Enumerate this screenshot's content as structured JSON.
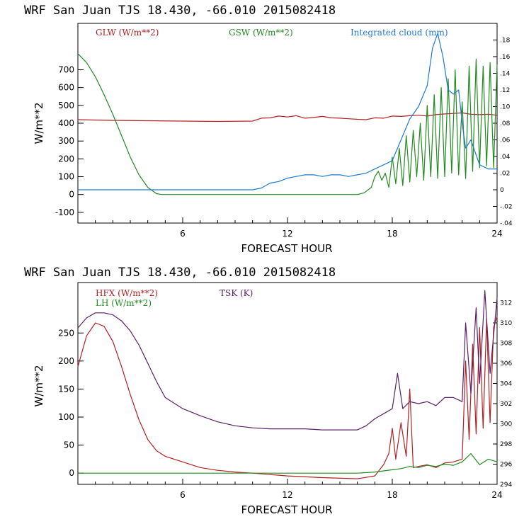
{
  "chart_data": [
    {
      "type": "line",
      "title": "WRF  San Juan TJS  18.430, -66.010  2015082418",
      "xlabel": "FORECAST HOUR",
      "ylabel": "W/m**2",
      "xlim": [
        0,
        24
      ],
      "xticks": [
        "6",
        "12",
        "18",
        "24"
      ],
      "ylim": [
        -160,
        960
      ],
      "yticks": [
        "-100",
        "0",
        "100",
        "200",
        "300",
        "400",
        "500",
        "600",
        "700"
      ],
      "y2lim": [
        -0.04,
        0.2
      ],
      "y2ticks": [
        "-.04",
        "-.02",
        "0",
        ".02",
        ".04",
        ".06",
        ".08",
        ".10",
        ".12",
        ".14",
        ".16",
        ".18"
      ],
      "legend_placement": "top",
      "series": [
        {
          "name": "GLW (W/m**2)",
          "color": "#b22222",
          "axis": "left",
          "x": [
            0,
            2,
            4,
            6,
            8,
            10,
            10.5,
            11,
            11.5,
            12,
            12.5,
            13,
            13.5,
            14,
            14.5,
            15,
            15.5,
            16,
            16.5,
            17,
            17.5,
            18,
            18.5,
            19,
            19.5,
            20,
            20.5,
            21,
            21.5,
            22,
            22.5,
            23,
            23.5,
            24
          ],
          "values": [
            420,
            416,
            414,
            412,
            410,
            412,
            428,
            430,
            440,
            435,
            442,
            428,
            432,
            438,
            430,
            428,
            425,
            422,
            420,
            430,
            428,
            440,
            438,
            442,
            445,
            440,
            448,
            452,
            455,
            458,
            450,
            448,
            450,
            445
          ]
        },
        {
          "name": "GSW (W/m**2)",
          "color": "#228b22",
          "axis": "left",
          "x": [
            0,
            0.5,
            1,
            1.5,
            2,
            2.5,
            3,
            3.5,
            4,
            4.5,
            4.8,
            5,
            8,
            12,
            16,
            16.4,
            16.8,
            17,
            17.2,
            17.4,
            17.6,
            17.8,
            18,
            18.2,
            18.4,
            18.6,
            18.8,
            19,
            19.2,
            19.4,
            19.6,
            19.8,
            20,
            20.2,
            20.4,
            20.6,
            20.8,
            21,
            21.2,
            21.4,
            21.6,
            21.8,
            22,
            22.2,
            22.4,
            22.6,
            22.8,
            23,
            23.2,
            23.4,
            23.6,
            23.8,
            24
          ],
          "values": [
            790,
            740,
            660,
            560,
            450,
            330,
            210,
            110,
            40,
            5,
            0,
            0,
            0,
            0,
            0,
            10,
            40,
            100,
            130,
            80,
            120,
            40,
            210,
            60,
            260,
            50,
            330,
            70,
            360,
            100,
            400,
            80,
            500,
            100,
            560,
            90,
            600,
            100,
            650,
            120,
            700,
            110,
            520,
            90,
            720,
            130,
            760,
            150,
            720,
            160,
            740,
            150,
            730
          ]
        },
        {
          "name": "Integrated cloud (mm)",
          "color": "#1f7ad6",
          "axis": "right",
          "x": [
            0,
            10,
            10.5,
            11,
            11.5,
            12,
            12.5,
            13,
            13.5,
            14,
            14.5,
            15,
            15.5,
            16,
            16.5,
            17,
            17.5,
            18,
            18.5,
            19,
            19.5,
            20,
            20.3,
            20.6,
            20.9,
            21.2,
            21.5,
            21.8,
            22,
            22.2,
            22.5,
            23,
            23.5,
            24
          ],
          "values": [
            0,
            0,
            0.002,
            0.008,
            0.01,
            0.014,
            0.016,
            0.018,
            0.018,
            0.016,
            0.018,
            0.018,
            0.016,
            0.018,
            0.02,
            0.025,
            0.03,
            0.035,
            0.06,
            0.085,
            0.1,
            0.125,
            0.17,
            0.188,
            0.16,
            0.12,
            0.115,
            0.12,
            0.08,
            0.05,
            0.06,
            0.03,
            0.025,
            0.025
          ]
        }
      ]
    },
    {
      "type": "line",
      "title": "WRF  San Juan TJS  18.430, -66.010  2015082418",
      "xlabel": "FORECAST HOUR",
      "ylabel": "W/m**2",
      "xlim": [
        0,
        24
      ],
      "xticks": [
        "6",
        "12",
        "18",
        "24"
      ],
      "ylim": [
        -20,
        340
      ],
      "yticks": [
        "0",
        "50",
        "100",
        "150",
        "200",
        "250"
      ],
      "y2lim": [
        294,
        314
      ],
      "y2ticks": [
        "294",
        "296",
        "298",
        "300",
        "302",
        "304",
        "306",
        "308",
        "310",
        "312"
      ],
      "legend_placement": "top-left",
      "series": [
        {
          "name": "HFX (W/m**2)",
          "color": "#b22222",
          "axis": "left",
          "x": [
            0,
            0.5,
            1,
            1.5,
            2,
            2.5,
            3,
            3.5,
            4,
            4.5,
            5,
            6,
            7,
            8,
            9,
            10,
            12,
            14,
            16,
            17,
            17.5,
            17.8,
            18,
            18.2,
            18.5,
            18.8,
            19,
            19.2,
            19.5,
            20,
            20.5,
            21,
            21.5,
            22,
            22.2,
            22.4,
            22.6,
            22.8,
            23,
            23.2,
            23.4,
            23.6,
            23.8,
            24
          ],
          "values": [
            190,
            245,
            268,
            262,
            235,
            190,
            140,
            95,
            60,
            40,
            30,
            20,
            10,
            5,
            2,
            0,
            -5,
            -8,
            -10,
            -5,
            15,
            35,
            80,
            25,
            90,
            30,
            150,
            10,
            12,
            15,
            10,
            18,
            20,
            25,
            200,
            60,
            230,
            70,
            260,
            80,
            275,
            90,
            260,
            280
          ]
        },
        {
          "name": "LH (W/m**2)",
          "color": "#228b22",
          "axis": "left",
          "x": [
            0,
            4,
            8,
            12,
            16,
            17,
            17.5,
            18,
            18.5,
            19,
            19.5,
            20,
            20.5,
            21,
            21.5,
            22,
            22.5,
            23,
            23.5,
            24
          ],
          "values": [
            0,
            0,
            0,
            0,
            0,
            2,
            4,
            6,
            8,
            12,
            10,
            14,
            12,
            16,
            14,
            20,
            35,
            15,
            25,
            20
          ]
        },
        {
          "name": "TSK (K)",
          "color": "#5b1f6a",
          "axis": "right",
          "x": [
            0,
            0.5,
            1,
            1.5,
            2,
            2.5,
            3,
            3.5,
            4,
            4.5,
            5,
            6,
            7,
            8,
            9,
            10,
            11,
            12,
            13,
            14,
            15,
            16,
            16.5,
            17,
            17.5,
            18,
            18.3,
            18.6,
            19,
            19.5,
            20,
            20.5,
            21,
            21.5,
            22,
            22.2,
            22.5,
            22.8,
            23,
            23.3,
            23.6,
            24
          ],
          "values": [
            309.5,
            310.5,
            311,
            311,
            310.8,
            310.2,
            309.2,
            307.8,
            306,
            304.2,
            302.6,
            301.5,
            300.8,
            300.2,
            299.8,
            299.6,
            299.5,
            299.5,
            299.5,
            299.4,
            299.4,
            299.4,
            299.8,
            300.5,
            301,
            301.5,
            305,
            301.5,
            302.2,
            302,
            302.2,
            301.8,
            302.6,
            302.6,
            302.2,
            310,
            303,
            311.5,
            304,
            313.2,
            305,
            312.5
          ]
        }
      ]
    }
  ]
}
